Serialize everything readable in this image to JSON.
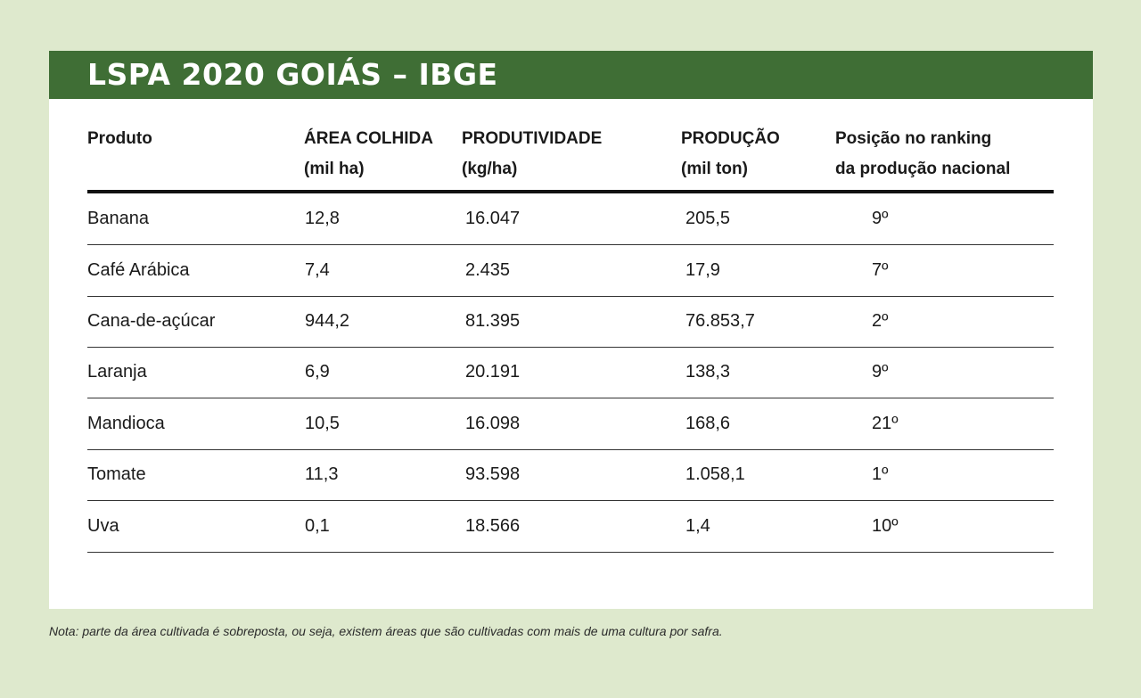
{
  "title": "LSPA 2020 GOIÁS – IBGE",
  "columns": [
    {
      "line1": "Produto",
      "line2": ""
    },
    {
      "line1": "ÁREA COLHIDA",
      "line2": "(mil ha)"
    },
    {
      "line1": "PRODUTIVIDADE",
      "line2": "(kg/ha)"
    },
    {
      "line1": "PRODUÇÃO",
      "line2": "(mil ton)"
    },
    {
      "line1": "Posição no ranking",
      "line2": "da produção nacional"
    }
  ],
  "rows": [
    {
      "produto": "Banana",
      "area": "12,8",
      "produtividade": "16.047",
      "producao": "205,5",
      "ranking": "9º"
    },
    {
      "produto": "Café Arábica",
      "area": "7,4",
      "produtividade": "2.435",
      "producao": "17,9",
      "ranking": "7º"
    },
    {
      "produto": "Cana-de-açúcar",
      "area": "944,2",
      "produtividade": "81.395",
      "producao": "76.853,7",
      "ranking": "2º"
    },
    {
      "produto": "Laranja",
      "area": "6,9",
      "produtividade": "20.191",
      "producao": "138,3",
      "ranking": "9º"
    },
    {
      "produto": "Mandioca",
      "area": "10,5",
      "produtividade": "16.098",
      "producao": "168,6",
      "ranking": "21º"
    },
    {
      "produto": "Tomate",
      "area": "11,3",
      "produtividade": "93.598",
      "producao": "1.058,1",
      "ranking": "1º"
    },
    {
      "produto": "Uva",
      "area": "0,1",
      "produtividade": "18.566",
      "producao": "1,4",
      "ranking": "10º"
    }
  ],
  "note": "Nota: parte da área cultivada é sobreposta, ou seja, existem áreas que são cultivadas com mais de uma cultura por safra."
}
